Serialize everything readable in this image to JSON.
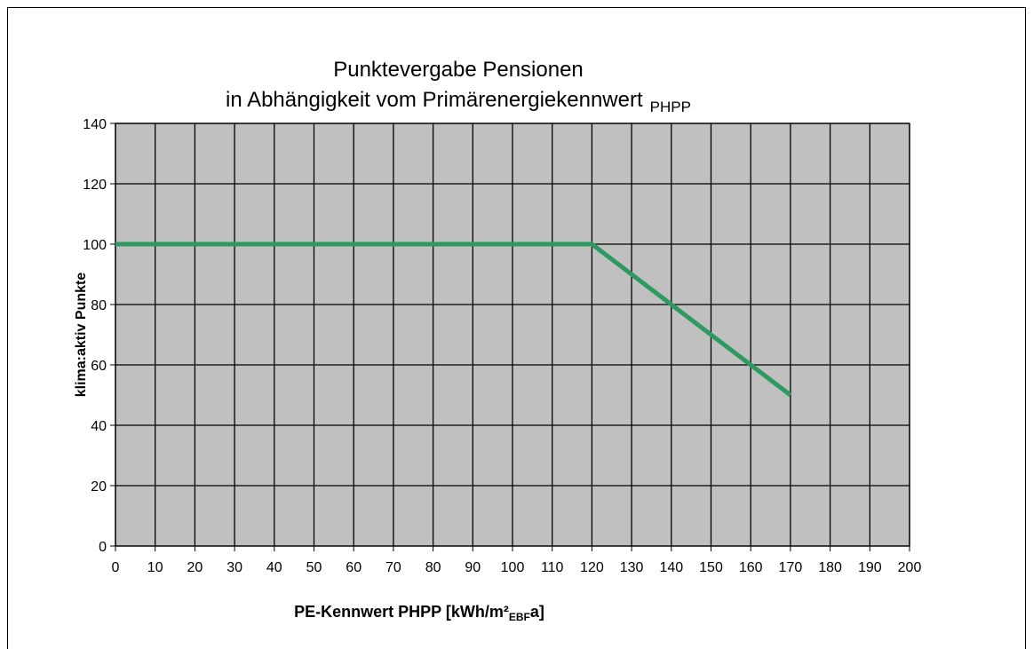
{
  "chart_data": {
    "type": "line",
    "title": [
      "Punktevergabe Pensionen",
      "in Abhängigkeit vom Primärenergiekennwert"
    ],
    "title_subscript": "PHPP",
    "xlabel": [
      "PE-Kennwert PHPP [kWh/m²",
      "EBF",
      "a]"
    ],
    "ylabel": "klima:aktiv Punkte",
    "x": [
      0,
      120,
      170
    ],
    "series": [
      {
        "name": "klima:aktiv Punkte",
        "color": "#2e9a62",
        "values": [
          100,
          100,
          50
        ]
      }
    ],
    "xlim": [
      0,
      200
    ],
    "xticks": [
      0,
      10,
      20,
      30,
      40,
      50,
      60,
      70,
      80,
      90,
      100,
      110,
      120,
      130,
      140,
      150,
      160,
      170,
      180,
      190,
      200
    ],
    "ylim": [
      0,
      140
    ],
    "yticks": [
      0,
      20,
      40,
      60,
      80,
      100,
      120,
      140
    ],
    "grid": true,
    "plot_background": "#c0c0c0"
  }
}
